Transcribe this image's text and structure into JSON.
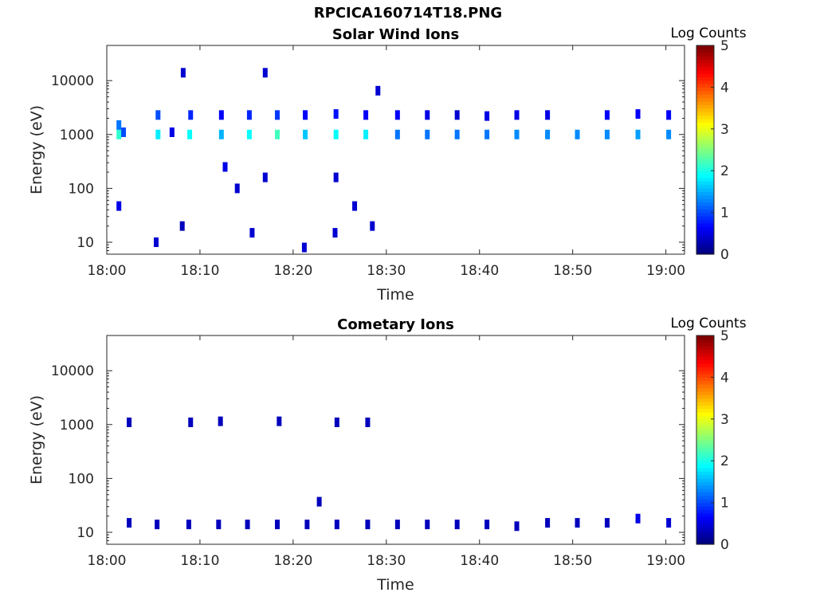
{
  "figure": {
    "title": "RPCICA160714T18.PNG"
  },
  "chart_data": [
    {
      "type": "heatmap",
      "title": "Solar Wind Ions",
      "xlabel": "Time",
      "ylabel": "Energy (eV)",
      "x_range": [
        "18:00",
        "19:02"
      ],
      "x_ticks": [
        "18:00",
        "18:10",
        "18:20",
        "18:30",
        "18:40",
        "18:50",
        "19:00"
      ],
      "y_scale": "log",
      "ylim": [
        6,
        45000
      ],
      "y_ticks": [
        "10",
        "100",
        "1000",
        "10000"
      ],
      "colorbar": {
        "label": "Log Counts",
        "range": [
          0,
          5
        ],
        "ticks": [
          "0",
          "1",
          "2",
          "3",
          "4",
          "5"
        ],
        "colormap": "jet"
      },
      "cells": [
        {
          "t": 1.3,
          "e": 1000,
          "v": 2.1
        },
        {
          "t": 1.3,
          "e": 1500,
          "v": 1.2
        },
        {
          "t": 1.8,
          "e": 1100,
          "v": 1.0
        },
        {
          "t": 5.5,
          "e": 1000,
          "v": 1.8
        },
        {
          "t": 5.5,
          "e": 2300,
          "v": 1.0
        },
        {
          "t": 7.0,
          "e": 1100,
          "v": 0.5
        },
        {
          "t": 8.9,
          "e": 1000,
          "v": 1.9
        },
        {
          "t": 9.0,
          "e": 2300,
          "v": 0.8
        },
        {
          "t": 12.3,
          "e": 1000,
          "v": 1.5
        },
        {
          "t": 12.3,
          "e": 2300,
          "v": 0.6
        },
        {
          "t": 15.3,
          "e": 1000,
          "v": 1.9
        },
        {
          "t": 15.3,
          "e": 2300,
          "v": 0.8
        },
        {
          "t": 18.3,
          "e": 1000,
          "v": 2.2
        },
        {
          "t": 18.3,
          "e": 2300,
          "v": 0.9
        },
        {
          "t": 21.3,
          "e": 1000,
          "v": 1.6
        },
        {
          "t": 21.3,
          "e": 2300,
          "v": 0.6
        },
        {
          "t": 24.6,
          "e": 1000,
          "v": 1.9
        },
        {
          "t": 24.6,
          "e": 2400,
          "v": 0.7
        },
        {
          "t": 27.8,
          "e": 1000,
          "v": 1.8
        },
        {
          "t": 27.8,
          "e": 2300,
          "v": 0.6
        },
        {
          "t": 31.2,
          "e": 1000,
          "v": 1.2
        },
        {
          "t": 31.2,
          "e": 2300,
          "v": 0.6
        },
        {
          "t": 34.4,
          "e": 1000,
          "v": 1.2
        },
        {
          "t": 34.4,
          "e": 2300,
          "v": 0.5
        },
        {
          "t": 37.6,
          "e": 1000,
          "v": 1.2
        },
        {
          "t": 37.6,
          "e": 2300,
          "v": 0.4
        },
        {
          "t": 40.8,
          "e": 1000,
          "v": 1.2
        },
        {
          "t": 40.8,
          "e": 2200,
          "v": 0.5
        },
        {
          "t": 44.0,
          "e": 1000,
          "v": 1.3
        },
        {
          "t": 44.0,
          "e": 2300,
          "v": 0.5
        },
        {
          "t": 47.3,
          "e": 1000,
          "v": 1.3
        },
        {
          "t": 47.3,
          "e": 2300,
          "v": 0.5
        },
        {
          "t": 50.5,
          "e": 1000,
          "v": 1.3
        },
        {
          "t": 53.7,
          "e": 1000,
          "v": 1.3
        },
        {
          "t": 53.7,
          "e": 2300,
          "v": 0.6
        },
        {
          "t": 57.0,
          "e": 1000,
          "v": 1.4
        },
        {
          "t": 57.0,
          "e": 2400,
          "v": 0.6
        },
        {
          "t": 60.3,
          "e": 1000,
          "v": 1.3
        },
        {
          "t": 60.3,
          "e": 2300,
          "v": 0.6
        },
        {
          "t": 1.3,
          "e": 47,
          "v": 0.5
        },
        {
          "t": 5.3,
          "e": 10,
          "v": 0.4
        },
        {
          "t": 8.1,
          "e": 20,
          "v": 0.3
        },
        {
          "t": 15.6,
          "e": 15,
          "v": 0.4
        },
        {
          "t": 21.2,
          "e": 8,
          "v": 0.4
        },
        {
          "t": 24.5,
          "e": 15,
          "v": 0.4
        },
        {
          "t": 26.6,
          "e": 47,
          "v": 0.4
        },
        {
          "t": 28.5,
          "e": 20,
          "v": 0.4
        },
        {
          "t": 12.7,
          "e": 250,
          "v": 0.5
        },
        {
          "t": 14.0,
          "e": 100,
          "v": 0.4
        },
        {
          "t": 17.0,
          "e": 160,
          "v": 0.4
        },
        {
          "t": 24.6,
          "e": 160,
          "v": 0.4
        },
        {
          "t": 8.2,
          "e": 14000,
          "v": 0.4
        },
        {
          "t": 17.0,
          "e": 14000,
          "v": 0.4
        },
        {
          "t": 29.1,
          "e": 6500,
          "v": 0.4
        }
      ]
    },
    {
      "type": "heatmap",
      "title": "Cometary Ions",
      "xlabel": "Time",
      "ylabel": "Energy (eV)",
      "x_range": [
        "18:00",
        "19:02"
      ],
      "x_ticks": [
        "18:00",
        "18:10",
        "18:20",
        "18:30",
        "18:40",
        "18:50",
        "19:00"
      ],
      "y_scale": "log",
      "ylim": [
        6,
        45000
      ],
      "y_ticks": [
        "10",
        "100",
        "1000",
        "10000"
      ],
      "colorbar": {
        "label": "Log Counts",
        "range": [
          0,
          5
        ],
        "ticks": [
          "0",
          "1",
          "2",
          "3",
          "4",
          "5"
        ],
        "colormap": "jet"
      },
      "cells": [
        {
          "t": 2.4,
          "e": 15,
          "v": 0.3
        },
        {
          "t": 5.4,
          "e": 14,
          "v": 0.3
        },
        {
          "t": 8.8,
          "e": 14,
          "v": 0.3
        },
        {
          "t": 12.0,
          "e": 14,
          "v": 0.3
        },
        {
          "t": 15.1,
          "e": 14,
          "v": 0.3
        },
        {
          "t": 18.3,
          "e": 14,
          "v": 0.3
        },
        {
          "t": 21.5,
          "e": 14,
          "v": 0.3
        },
        {
          "t": 24.7,
          "e": 14,
          "v": 0.3
        },
        {
          "t": 28.0,
          "e": 14,
          "v": 0.3
        },
        {
          "t": 31.2,
          "e": 14,
          "v": 0.3
        },
        {
          "t": 34.4,
          "e": 14,
          "v": 0.3
        },
        {
          "t": 37.6,
          "e": 14,
          "v": 0.3
        },
        {
          "t": 40.8,
          "e": 14,
          "v": 0.3
        },
        {
          "t": 44.0,
          "e": 13,
          "v": 0.3
        },
        {
          "t": 47.3,
          "e": 15,
          "v": 0.3
        },
        {
          "t": 50.5,
          "e": 15,
          "v": 0.3
        },
        {
          "t": 53.7,
          "e": 15,
          "v": 0.3
        },
        {
          "t": 57.0,
          "e": 18,
          "v": 0.5
        },
        {
          "t": 60.3,
          "e": 15,
          "v": 0.4
        },
        {
          "t": 2.4,
          "e": 1100,
          "v": 0.3
        },
        {
          "t": 9.0,
          "e": 1100,
          "v": 0.3
        },
        {
          "t": 12.2,
          "e": 1150,
          "v": 0.3
        },
        {
          "t": 18.5,
          "e": 1150,
          "v": 0.3
        },
        {
          "t": 24.7,
          "e": 1100,
          "v": 0.3
        },
        {
          "t": 28.0,
          "e": 1100,
          "v": 0.3
        },
        {
          "t": 22.8,
          "e": 37,
          "v": 0.3
        }
      ]
    }
  ]
}
